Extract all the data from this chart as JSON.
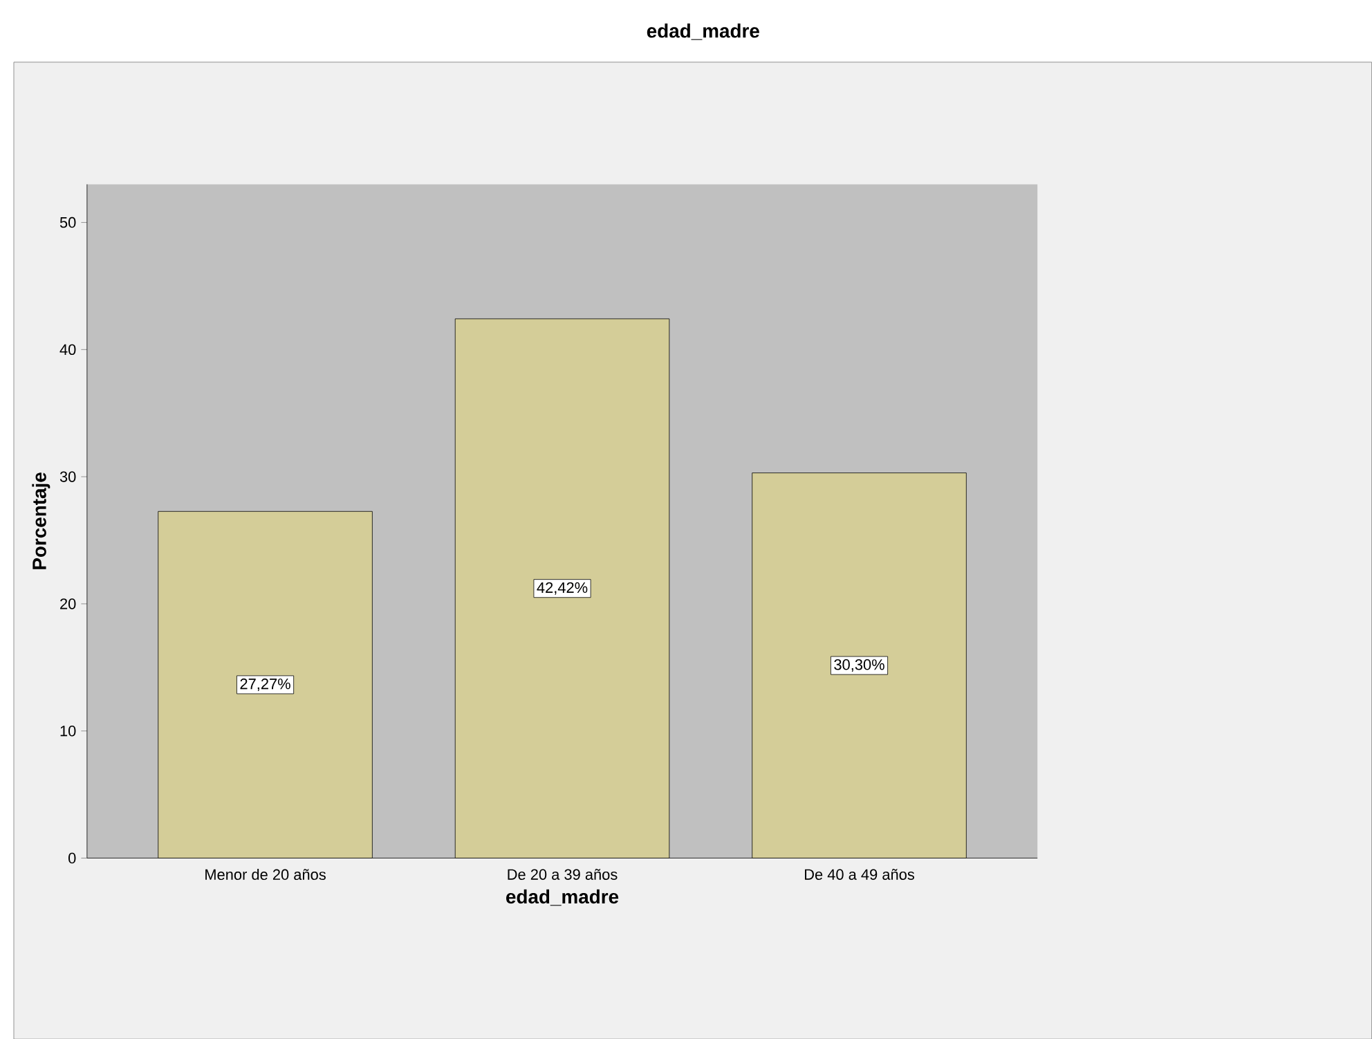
{
  "chart_data": {
    "type": "bar",
    "title": "edad_madre",
    "xlabel": "edad_madre",
    "ylabel": "Porcentaje",
    "categories": [
      "Menor de 20 años",
      "De 20 a 39 años",
      "De 40 a 49 años"
    ],
    "values": [
      27.27,
      42.42,
      30.3
    ],
    "value_labels": [
      "27,27%",
      "42,42%",
      "30,30%"
    ],
    "color": "#d4cd98",
    "ylim": [
      0,
      53
    ],
    "yticks": [
      0,
      10,
      20,
      30,
      40,
      50
    ]
  }
}
